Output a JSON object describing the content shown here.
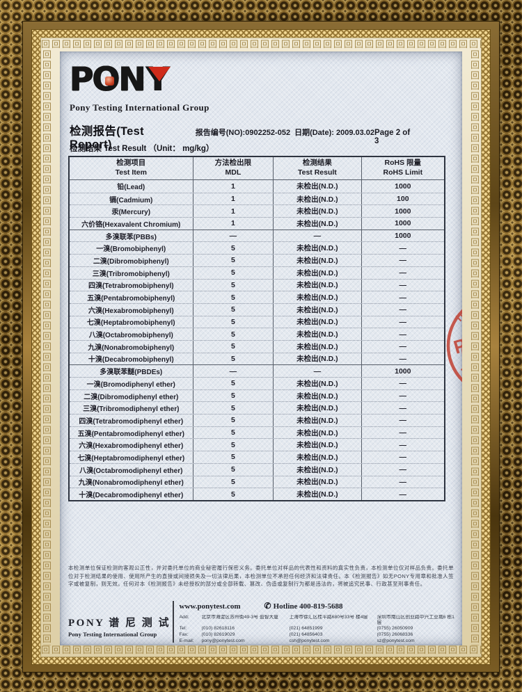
{
  "header": {
    "logo_word_pon": "PON",
    "logo_word_y": "Y",
    "logo_subtitle": "Pony Testing International Group",
    "title": "检测报告(Test Report)",
    "report_no": "报告编号(NO):0902252-052",
    "date": "日期(Date): 2009.03.02",
    "page": "Page 2 of 3",
    "result_line": "检测结果 Test Result （Unit： mg/kg）"
  },
  "table": {
    "columns": [
      {
        "zh": "检测项目",
        "en": "Test Item"
      },
      {
        "zh": "方法检出限",
        "en": "MDL"
      },
      {
        "zh": "检测结果",
        "en": "Test Result"
      },
      {
        "zh": "RoHS 限量",
        "en": "RoHS Limit"
      }
    ],
    "rows": [
      {
        "item": "铅(Lead)",
        "mdl": "1",
        "result": "未检出(N.D.)",
        "limit": "1000",
        "group": false
      },
      {
        "item": "镉(Cadmium)",
        "mdl": "1",
        "result": "未检出(N.D.)",
        "limit": "100",
        "group": false
      },
      {
        "item": "汞(Mercury)",
        "mdl": "1",
        "result": "未检出(N.D.)",
        "limit": "1000",
        "group": false
      },
      {
        "item": "六价铬(Hexavalent Chromium)",
        "mdl": "1",
        "result": "未检出(N.D.)",
        "limit": "1000",
        "group": false
      },
      {
        "item": "多溴联苯(PBBs)",
        "mdl": "—",
        "result": "—",
        "limit": "1000",
        "group": true
      },
      {
        "item": "一溴(Bromobiphenyl)",
        "mdl": "5",
        "result": "未检出(N.D.)",
        "limit": "—",
        "group": false
      },
      {
        "item": "二溴(Dibromobiphenyl)",
        "mdl": "5",
        "result": "未检出(N.D.)",
        "limit": "—",
        "group": false
      },
      {
        "item": "三溴(Tribromobiphenyl)",
        "mdl": "5",
        "result": "未检出(N.D.)",
        "limit": "—",
        "group": false
      },
      {
        "item": "四溴(Tetrabromobiphenyl)",
        "mdl": "5",
        "result": "未检出(N.D.)",
        "limit": "—",
        "group": false
      },
      {
        "item": "五溴(Pentabromobiphenyl)",
        "mdl": "5",
        "result": "未检出(N.D.)",
        "limit": "—",
        "group": false
      },
      {
        "item": "六溴(Hexabromobiphenyl)",
        "mdl": "5",
        "result": "未检出(N.D.)",
        "limit": "—",
        "group": false
      },
      {
        "item": "七溴(Heptabromobiphenyl)",
        "mdl": "5",
        "result": "未检出(N.D.)",
        "limit": "—",
        "group": false
      },
      {
        "item": "八溴(Octabromobiphenyl)",
        "mdl": "5",
        "result": "未检出(N.D.)",
        "limit": "—",
        "group": false
      },
      {
        "item": "九溴(Nonabromobiphenyl)",
        "mdl": "5",
        "result": "未检出(N.D.)",
        "limit": "—",
        "group": false
      },
      {
        "item": "十溴(Decabromobiphenyl)",
        "mdl": "5",
        "result": "未检出(N.D.)",
        "limit": "—",
        "group": false
      },
      {
        "item": "多溴联苯醚(PBDEs)",
        "mdl": "—",
        "result": "—",
        "limit": "1000",
        "group": true
      },
      {
        "item": "一溴(Bromodiphenyl ether)",
        "mdl": "5",
        "result": "未检出(N.D.)",
        "limit": "—",
        "group": false
      },
      {
        "item": "二溴(Dibromodiphenyl ether)",
        "mdl": "5",
        "result": "未检出(N.D.)",
        "limit": "—",
        "group": false
      },
      {
        "item": "三溴(Tribromodiphenyl ether)",
        "mdl": "5",
        "result": "未检出(N.D.)",
        "limit": "—",
        "group": false
      },
      {
        "item": "四溴(Tetrabromodiphenyl ether)",
        "mdl": "5",
        "result": "未检出(N.D.)",
        "limit": "—",
        "group": false
      },
      {
        "item": "五溴(Pentabromodiphenyl ether)",
        "mdl": "5",
        "result": "未检出(N.D.)",
        "limit": "—",
        "group": false
      },
      {
        "item": "六溴(Hexabromodiphenyl ether)",
        "mdl": "5",
        "result": "未检出(N.D.)",
        "limit": "—",
        "group": false
      },
      {
        "item": "七溴(Heptabromodiphenyl ether)",
        "mdl": "5",
        "result": "未检出(N.D.)",
        "limit": "—",
        "group": false
      },
      {
        "item": "八溴(Octabromodiphenyl ether)",
        "mdl": "5",
        "result": "未检出(N.D.)",
        "limit": "—",
        "group": false
      },
      {
        "item": "九溴(Nonabromodiphenyl ether)",
        "mdl": "5",
        "result": "未检出(N.D.)",
        "limit": "—",
        "group": false
      },
      {
        "item": "十溴(Decabromodiphenyl ether)",
        "mdl": "5",
        "result": "未检出(N.D.)",
        "limit": "—",
        "group": false
      }
    ]
  },
  "disclaimer": "本检测单位保证检测的客观公正性，并对委托单位的商业秘密履行保密义务。委托单位对样品的代表性和资料的真实性负责，本检测单位仅对样品负责。委托单位对于检测结果的使用、使用所产生的直接或间接损失及一切法律后果，本检测单位不承担任何经济和法律责任。本《检测报告》如无PONY专用章和批准人签字或被复制，则无效。任何对本《检测报告》未经授权的部分或全部转载、篡改、伪造或复制行为都是违法的，将被追究民事、行政甚至刑事责任。",
  "footer": {
    "brand_zh": "PONY 谱 尼 测 试",
    "brand_en": "Pony Testing International Group",
    "website": "www.ponytest.com",
    "phone_icon": "✆",
    "hotline": "Hotline 400-819-5688",
    "labels": {
      "add": "Add:",
      "tel": "Tel:",
      "fax": "Fax:",
      "email": "E-mail:"
    },
    "offices": [
      {
        "address": "北京市海淀区苏州街49-3号 盈智大厦",
        "tel": "(010) 82618116",
        "fax": "(010) 82619029",
        "email": "pony@ponytest.com"
      },
      {
        "address": "上海市徐汇区桂平路680号33号 楼4层",
        "tel": "(021) 64851999",
        "fax": "(021) 64856403",
        "email": "csh@ponytest.com"
      },
      {
        "address": "深圳市南山区创业路中兴工业城6 栋1层",
        "tel": "(0755) 26050909",
        "fax": "(0755) 26068336",
        "email": "sz@ponytest.com"
      }
    ]
  },
  "stamp": {
    "ring_top": "IN",
    "ring_bottom": "PO",
    "center": "PONY",
    "color": "#bf3a2b"
  },
  "frame": {
    "key_char": "回"
  }
}
